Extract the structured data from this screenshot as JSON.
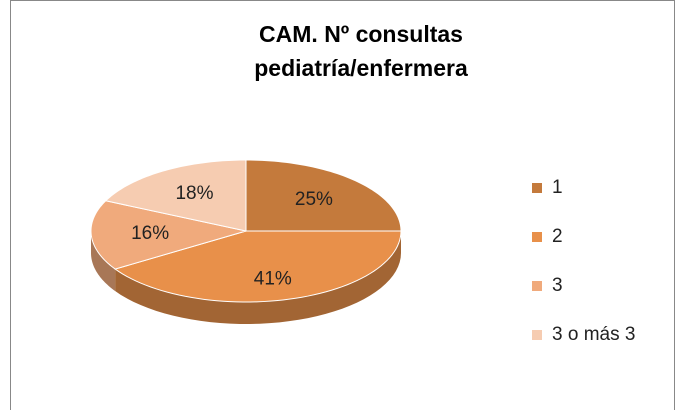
{
  "chart_data": {
    "type": "pie",
    "title": [
      "CAM. Nº consultas",
      "pediatría/enfermera"
    ],
    "categories": [
      "1",
      "2",
      "3",
      "3 o más 3"
    ],
    "values": [
      25,
      41,
      16,
      18
    ],
    "value_labels": [
      "25%",
      "41%",
      "16%",
      "18%"
    ],
    "colors": [
      "#c47a3c",
      "#e8904a",
      "#f0aa7c",
      "#f6ccb1"
    ],
    "legend": "right"
  }
}
